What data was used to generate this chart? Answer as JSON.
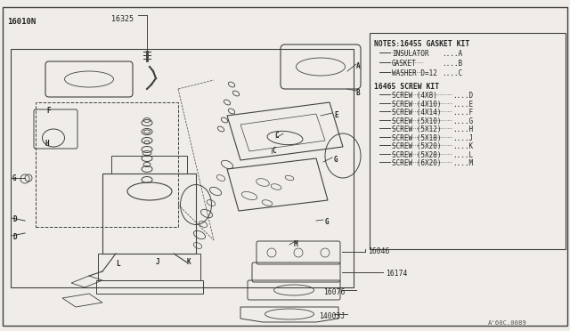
{
  "bg_color": "#f0ede8",
  "line_color": "#404040",
  "text_color": "#222222",
  "title_text": "16010N",
  "part_top": "16325",
  "notes_title": "NOTES:16455 GASKET KIT",
  "gasket_items": [
    [
      "INSULATOR",
      "A"
    ],
    [
      "GASKET",
      "B"
    ],
    [
      "WASHER D=12",
      "C"
    ]
  ],
  "screw_title": "16465 SCREW KIT",
  "screw_items": [
    [
      "SCREW (4X8)",
      "D"
    ],
    [
      "SCREW (4X10)",
      "E"
    ],
    [
      "SCREW (4X14)",
      "F"
    ],
    [
      "SCREW (5X10)",
      "G"
    ],
    [
      "SCREW (5X12)",
      "H"
    ],
    [
      "SCREW (5X18)",
      "J"
    ],
    [
      "SCREW (5X20)",
      "K"
    ],
    [
      "SCREW (5X28)",
      "L"
    ],
    [
      "SCREW (6X20)",
      "M"
    ]
  ],
  "corner_label": "A'60C.0089",
  "fig_width": 6.4,
  "fig_height": 3.72,
  "dpi": 100
}
